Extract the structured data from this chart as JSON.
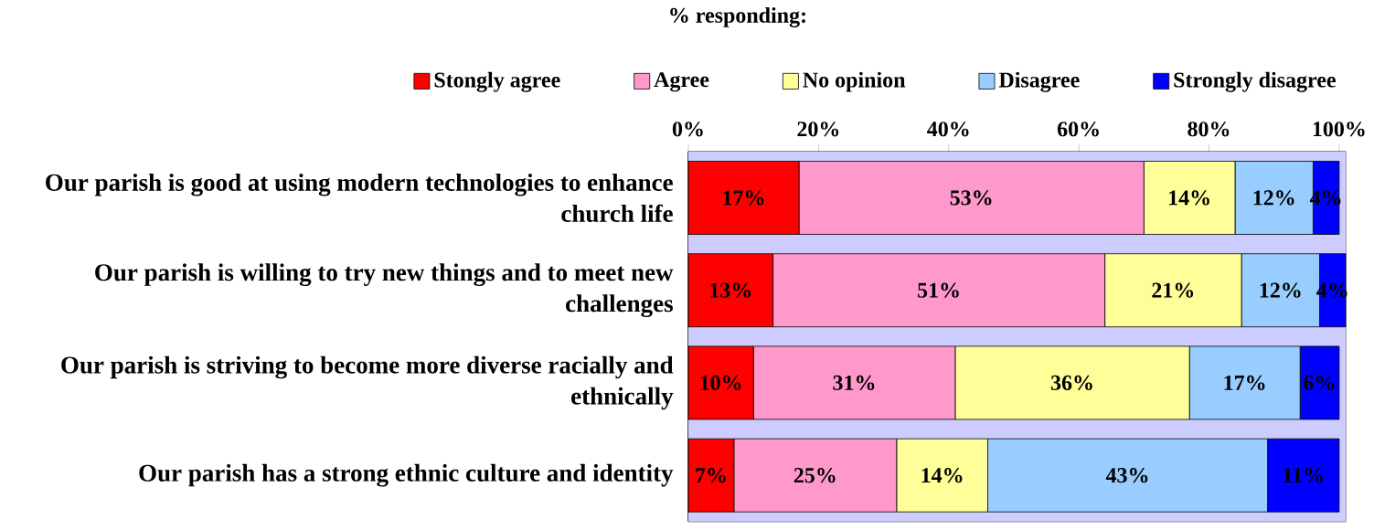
{
  "chart_data": {
    "type": "bar",
    "orientation": "horizontal",
    "stacked": true,
    "title": "% responding:",
    "categories": [
      "Our parish is good at using modern technologies to enhance church life",
      "Our parish is willing to try new things and to meet new challenges",
      "Our parish is striving to become more diverse racially and ethnically",
      "Our parish has a strong ethnic culture and identity"
    ],
    "series": [
      {
        "name": "Stongly agree",
        "color": "#ff0000",
        "values": [
          17,
          13,
          10,
          7
        ],
        "value_labels": [
          "17%",
          "13%",
          "10%",
          "7%"
        ]
      },
      {
        "name": "Agree",
        "color": "#ff99cc",
        "values": [
          53,
          51,
          31,
          25
        ],
        "value_labels": [
          "53%",
          "51%",
          "31%",
          "25%"
        ]
      },
      {
        "name": "No opinion",
        "color": "#ffff99",
        "values": [
          14,
          21,
          36,
          14
        ],
        "value_labels": [
          "14%",
          "21%",
          "36%",
          "14%"
        ]
      },
      {
        "name": "Disagree",
        "color": "#99ccff",
        "values": [
          12,
          12,
          17,
          43
        ],
        "value_labels": [
          "12%",
          "12%",
          "17%",
          "43%"
        ]
      },
      {
        "name": "Strongly disagree",
        "color": "#0000ff",
        "values": [
          4,
          4,
          6,
          11
        ],
        "value_labels": [
          "4%",
          "4%",
          "6%",
          "11%"
        ]
      }
    ],
    "xlim": [
      0,
      101
    ],
    "xticks": [
      {
        "value": 0,
        "label": "0%"
      },
      {
        "value": 20,
        "label": "20%"
      },
      {
        "value": 40,
        "label": "40%"
      },
      {
        "value": 60,
        "label": "60%"
      },
      {
        "value": 80,
        "label": "80%"
      },
      {
        "value": 100,
        "label": "100%"
      }
    ],
    "bands": [
      {
        "axis": "x",
        "from": 0,
        "to": 101,
        "color": "#ccccff"
      }
    ],
    "grid": "x",
    "legend": "top"
  }
}
